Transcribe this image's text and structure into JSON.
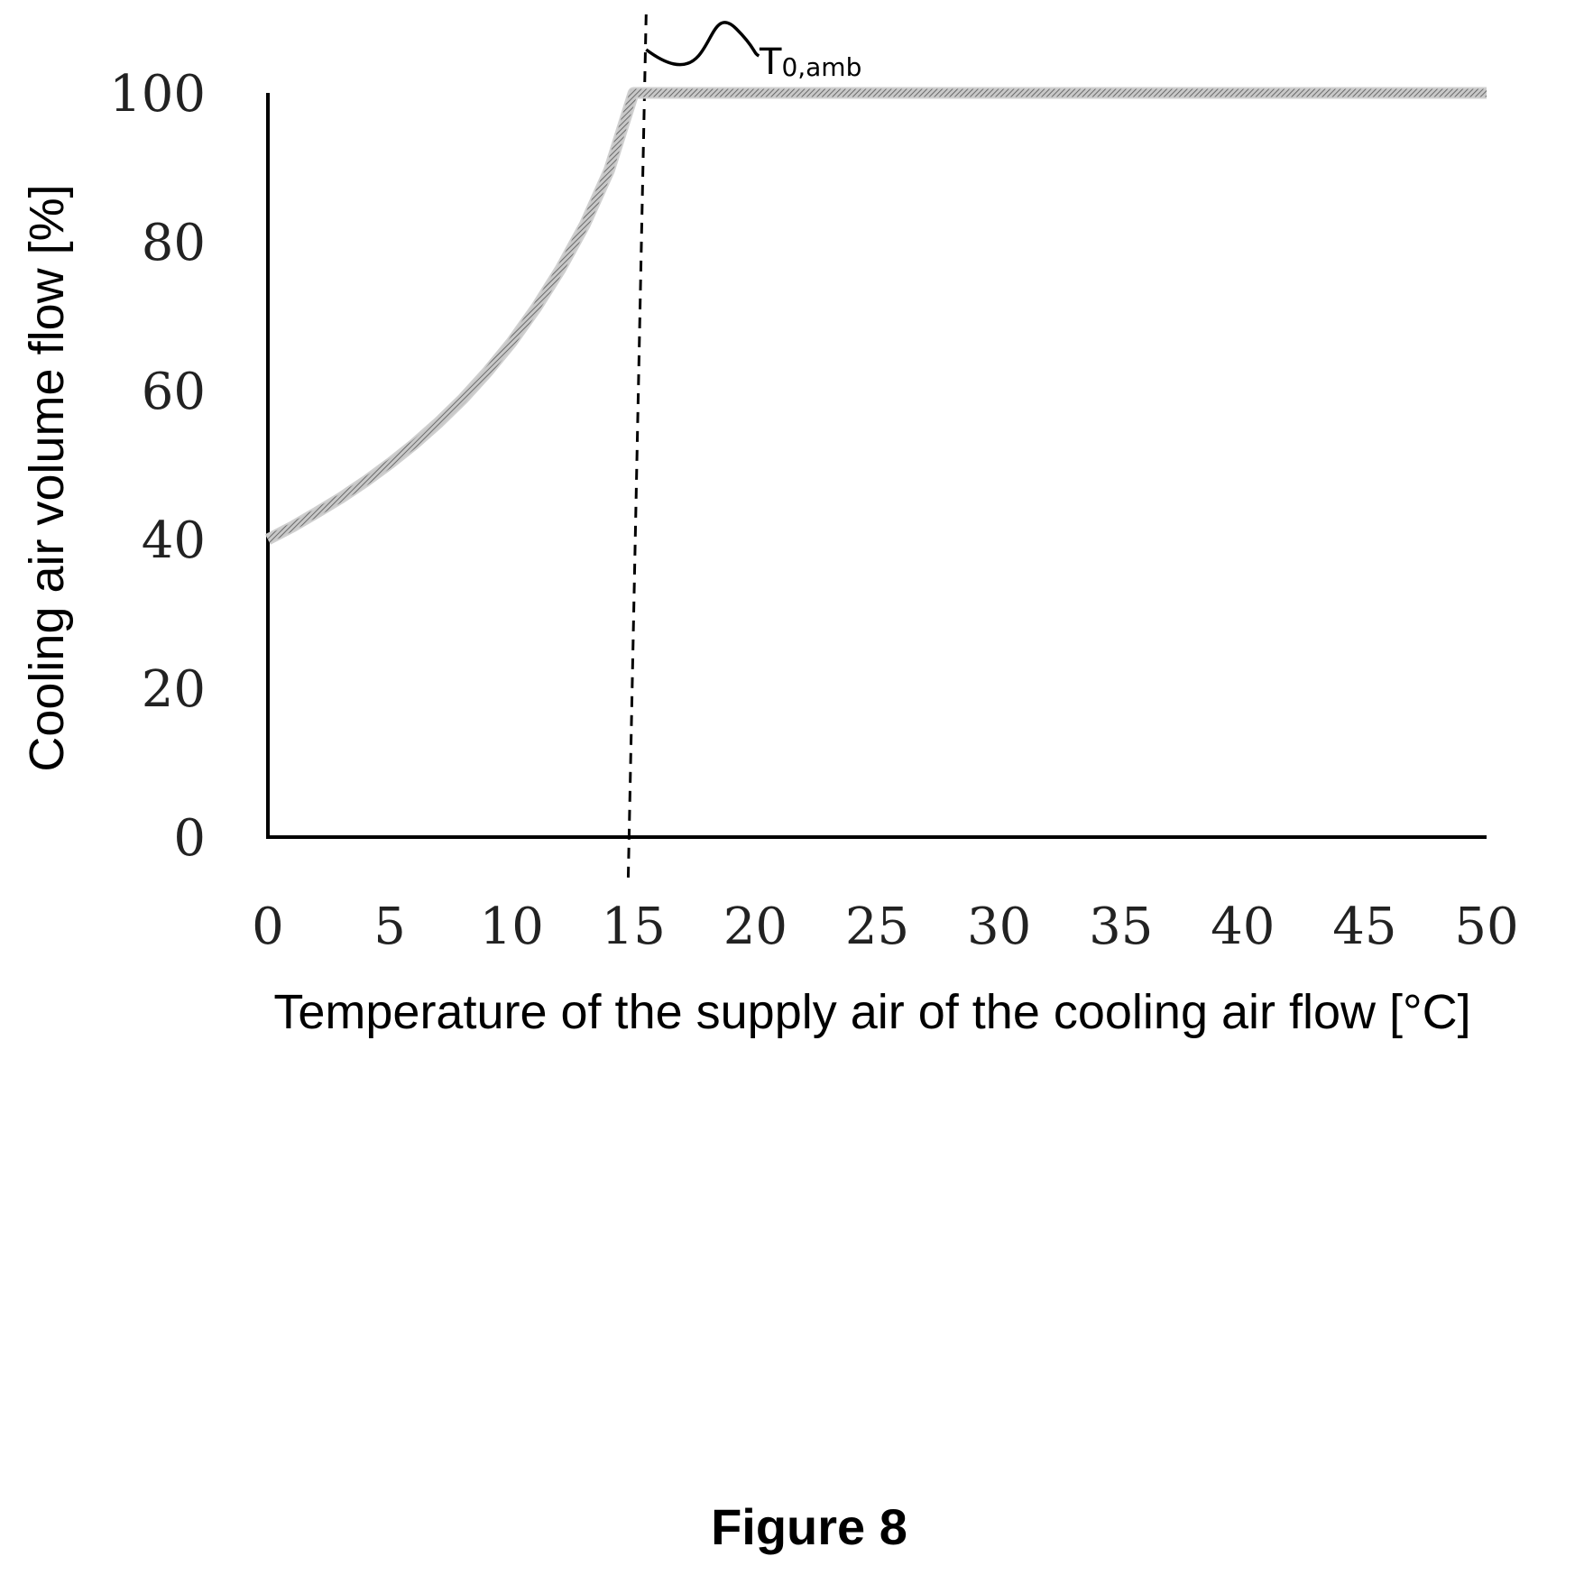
{
  "chart_data": {
    "type": "line",
    "title": "",
    "xlabel": "Temperature of the supply air of the cooling air flow [°C]",
    "ylabel": "Cooling air volume flow [%]",
    "xlim": [
      0,
      50
    ],
    "ylim": [
      0,
      100
    ],
    "x_ticks": [
      "0",
      "5",
      "10",
      "15",
      "20",
      "25",
      "30",
      "35",
      "40",
      "45",
      "50"
    ],
    "y_ticks": [
      "0",
      "20",
      "40",
      "60",
      "80",
      "100"
    ],
    "grid": false,
    "legend": "none",
    "series": [
      {
        "x": [
          0,
          1,
          2,
          3,
          4,
          5,
          6,
          7,
          8,
          9,
          10,
          11,
          12,
          13,
          14,
          15,
          20,
          25,
          30,
          35,
          40,
          45,
          50
        ],
        "y": [
          40,
          41.7,
          43.6,
          45.6,
          47.8,
          50.2,
          52.8,
          55.7,
          58.9,
          62.5,
          66.5,
          71.1,
          76.3,
          82.3,
          89.6,
          100,
          100,
          100,
          100,
          100,
          100,
          100,
          100
        ],
        "color": "#8a8a8a"
      }
    ],
    "annotations": [
      {
        "type": "vertical-dashed-line",
        "x": 15,
        "label_main": "T",
        "label_sub": "0,amb"
      }
    ]
  },
  "caption": "Figure 8"
}
